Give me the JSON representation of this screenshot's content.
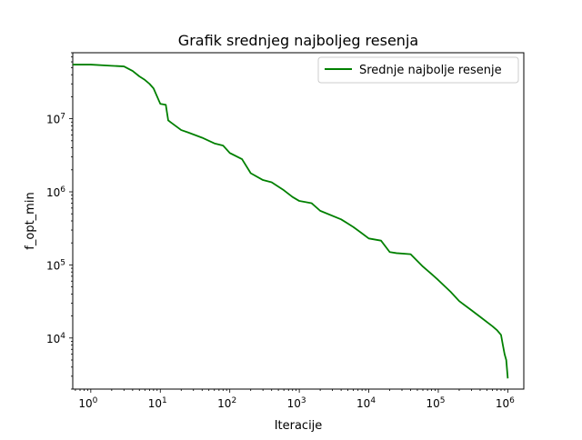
{
  "chart_data": {
    "type": "line",
    "title": "Grafik srednjeg najboljeg resenja",
    "xlabel": "Iteracije",
    "ylabel": "f_opt_min",
    "xscale": "log",
    "yscale": "log",
    "xlim": [
      0.55,
      1700000
    ],
    "ylim": [
      2000,
      80000000
    ],
    "x_ticks": [
      {
        "value": 1,
        "base": "10",
        "exp": "0"
      },
      {
        "value": 10,
        "base": "10",
        "exp": "1"
      },
      {
        "value": 100,
        "base": "10",
        "exp": "2"
      },
      {
        "value": 1000,
        "base": "10",
        "exp": "3"
      },
      {
        "value": 10000,
        "base": "10",
        "exp": "4"
      },
      {
        "value": 100000,
        "base": "10",
        "exp": "5"
      },
      {
        "value": 1000000,
        "base": "10",
        "exp": "6"
      }
    ],
    "y_ticks": [
      {
        "value": 10000,
        "base": "10",
        "exp": "4"
      },
      {
        "value": 100000,
        "base": "10",
        "exp": "5"
      },
      {
        "value": 1000000,
        "base": "10",
        "exp": "6"
      },
      {
        "value": 10000000,
        "base": "10",
        "exp": "7"
      }
    ],
    "grid": false,
    "legend_position": "top-right",
    "series": [
      {
        "name": "Srednje najbolje resenje",
        "color": "#008000",
        "x": [
          0.55,
          1,
          2,
          3,
          4,
          5,
          6,
          7,
          8,
          10,
          12,
          13,
          14,
          20,
          25,
          40,
          60,
          80,
          100,
          150,
          200,
          300,
          400,
          600,
          800,
          1000,
          1500,
          2000,
          4000,
          6000,
          8000,
          10000,
          15000,
          20000,
          25000,
          40000,
          60000,
          80000,
          100000,
          150000,
          200000,
          300000,
          400000,
          600000,
          700000,
          800000,
          850000,
          900000,
          950000,
          1000000
        ],
        "y": [
          55000000,
          55000000,
          53000000,
          52000000,
          45000000,
          38000000,
          34000000,
          30000000,
          26000000,
          16000000,
          15500000,
          9500000,
          9000000,
          7000000,
          6500000,
          5500000,
          4600000,
          4300000,
          3400000,
          2800000,
          1800000,
          1450000,
          1350000,
          1050000,
          850000,
          750000,
          700000,
          550000,
          420000,
          330000,
          270000,
          230000,
          215000,
          150000,
          145000,
          140000,
          95000,
          75000,
          62000,
          43000,
          32000,
          24000,
          19500,
          14500,
          12800,
          11000,
          8000,
          6000,
          5000,
          2800
        ]
      }
    ]
  }
}
